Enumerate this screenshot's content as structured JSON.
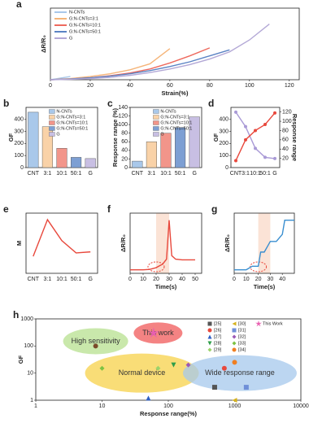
{
  "chart_data": [
    {
      "type": "line",
      "label": "a",
      "xlabel": "Strain(%)",
      "ylabel": "ΔR/R₀",
      "x": [
        0,
        10,
        20,
        30,
        40,
        50,
        60,
        70,
        80,
        90,
        100,
        110,
        120
      ],
      "xlim": [
        0,
        125
      ],
      "xticks": [
        0,
        20,
        40,
        60,
        80,
        100,
        120
      ],
      "ylim": [
        0,
        180
      ],
      "series": [
        {
          "name": "N-CNTs",
          "color": "#a9c8ea",
          "values": [
            0,
            8,
            null,
            null,
            null,
            null,
            null,
            null,
            null,
            null,
            null,
            null,
            null
          ]
        },
        {
          "name": "G:N-CNTs=3:1",
          "color": "#f5b57a",
          "values": [
            0,
            3,
            8,
            15,
            25,
            40,
            78,
            null,
            null,
            null,
            null,
            null,
            null
          ]
        },
        {
          "name": "G:N-CNTs=10:1",
          "color": "#ee6a5e",
          "values": [
            0,
            2,
            5,
            10,
            17,
            27,
            42,
            60,
            80,
            null,
            null,
            null,
            null
          ]
        },
        {
          "name": "G:N-CNTs=50:1",
          "color": "#5b83c4",
          "values": [
            0,
            2,
            5,
            9,
            15,
            23,
            33,
            45,
            60,
            75,
            null,
            null,
            null
          ]
        },
        {
          "name": "G",
          "color": "#b3a8d6",
          "values": [
            0,
            1,
            3,
            6,
            11,
            18,
            27,
            38,
            52,
            70,
            100,
            140,
            null
          ]
        }
      ]
    },
    {
      "type": "bar",
      "label": "b",
      "ylabel": "GF",
      "categories": [
        "CNT",
        "3:1",
        "10:1",
        "50:1",
        "G"
      ],
      "values": [
        460,
        340,
        160,
        85,
        75
      ],
      "colors": [
        "#a9c8ea",
        "#f9d2a8",
        "#f2958a",
        "#7d9fd3",
        "#c8bfe3"
      ],
      "legend": [
        "N-CNTs",
        "G:N-CNTs=3:1",
        "G:N-CNTs=10:1",
        "G:N-CNTs=50:1",
        "G"
      ],
      "ylim": [
        0,
        500
      ],
      "yticks": [
        0,
        100,
        200,
        300,
        400
      ]
    },
    {
      "type": "bar",
      "label": "c",
      "ylabel": "Response range (%)",
      "categories": [
        "CNT",
        "3:1",
        "10:1",
        "50:1",
        "G"
      ],
      "values": [
        15,
        60,
        80,
        93,
        118
      ],
      "colors": [
        "#a9c8ea",
        "#f9d2a8",
        "#f2958a",
        "#7d9fd3",
        "#c8bfe3"
      ],
      "legend": [
        "N-CNTs",
        "G:N-CNTs=3:1",
        "G:N-CNTs=10:1",
        "G:N-CNTs=50:1",
        "G"
      ],
      "ylim": [
        0,
        140
      ],
      "yticks": [
        0,
        20,
        40,
        60,
        80,
        100,
        120,
        140
      ]
    },
    {
      "type": "line",
      "label": "d",
      "ylabel": "GF",
      "y2label": "Response range",
      "markers": true,
      "categories": [
        "CNT",
        "3:1",
        "10:1",
        "50:1",
        "G"
      ],
      "ylim": [
        0,
        500
      ],
      "yticks": [
        0,
        100,
        200,
        300,
        400
      ],
      "y2lim": [
        0,
        130
      ],
      "y2ticks": [
        20,
        40,
        60,
        80,
        100,
        120
      ],
      "series": [
        {
          "color": "#a99ad6",
          "values": [
            460,
            340,
            160,
            85,
            75
          ]
        },
        {
          "color": "#e8483c",
          "values": [
            15,
            60,
            80,
            93,
            118
          ],
          "axis": "y2"
        }
      ]
    },
    {
      "type": "line",
      "label": "e",
      "ylabel": "M",
      "categories": [
        "CNT",
        "3:1",
        "10:1",
        "50:1",
        "G"
      ],
      "values": [
        65,
        205,
        125,
        78,
        82
      ],
      "color": "#e8483c",
      "ylim": [
        0,
        230
      ]
    },
    {
      "type": "line",
      "label": "f",
      "xlabel": "Time(s)",
      "ylabel": "ΔR/R₀",
      "color": "#e8483c",
      "x": [
        0,
        5,
        10,
        15,
        18,
        20,
        22,
        25,
        28,
        30,
        32,
        35,
        40,
        45,
        50
      ],
      "values": [
        0,
        0,
        0,
        0.5,
        2,
        3,
        5,
        8,
        15,
        70,
        20,
        15,
        14,
        14,
        14
      ],
      "xlim": [
        0,
        55
      ],
      "xticks": [
        0,
        10,
        20,
        30,
        40,
        50
      ],
      "ylim": [
        -5,
        80
      ]
    },
    {
      "type": "line",
      "label": "g",
      "xlabel": "Time(s)",
      "ylabel": "ΔR/R₀",
      "color": "#3a8fd0",
      "x": [
        0,
        5,
        10,
        15,
        20,
        22,
        25,
        30,
        35,
        40,
        42,
        45,
        50
      ],
      "values": [
        0,
        0,
        0,
        0.1,
        0.1,
        0.5,
        0.5,
        0.8,
        0.8,
        1.0,
        1.4,
        1.4,
        1.4
      ],
      "xlim": [
        0,
        50
      ],
      "xticks": [
        0,
        10,
        20,
        30,
        40
      ],
      "ylim": [
        -0.1,
        1.6
      ]
    },
    {
      "type": "scatter",
      "label": "h",
      "xlabel": "Response range(%)",
      "ylabel": "GF",
      "xscale": "log",
      "yscale": "log",
      "xlim": [
        1,
        10000
      ],
      "xticks": [
        1,
        10,
        100,
        1000,
        10000
      ],
      "ylim": [
        1,
        1000
      ],
      "yticks": [
        1,
        10,
        100,
        1000
      ],
      "annotations": [
        "High sensitivity",
        "This work",
        "Normal device",
        "Wide response range"
      ],
      "series": [
        {
          "name": "[25]",
          "color": "#555555",
          "marker": "square",
          "x": [
            500
          ],
          "values": [
            3
          ]
        },
        {
          "name": "[26]",
          "color": "#e8483c",
          "marker": "circle",
          "x": [
            700
          ],
          "values": [
            15
          ]
        },
        {
          "name": "[27]",
          "color": "#2f5fc4",
          "marker": "triangle",
          "x": [
            50
          ],
          "values": [
            1.2
          ]
        },
        {
          "name": "[28]",
          "color": "#2e9e4a",
          "marker": "triangle-down",
          "x": [
            120
          ],
          "values": [
            20
          ]
        },
        {
          "name": "[29]",
          "color": "#9bd36a",
          "marker": "diamond",
          "x": [
            70
          ],
          "values": [
            15
          ]
        },
        {
          "name": "[30]",
          "color": "#d6b21e",
          "marker": "triangle-left",
          "x": [
            1000
          ],
          "values": [
            1
          ]
        },
        {
          "name": "[31]",
          "color": "#6f8fd8",
          "marker": "square",
          "x": [
            1500
          ],
          "values": [
            3
          ]
        },
        {
          "name": "[32]",
          "color": "#9b59b6",
          "marker": "diamond",
          "x": [
            200
          ],
          "values": [
            20
          ]
        },
        {
          "name": "[33]",
          "color": "#7cc242",
          "marker": "diamond",
          "x": [
            10
          ],
          "values": [
            15
          ]
        },
        {
          "name": "[34]",
          "color": "#f07f22",
          "marker": "circle",
          "x": [
            1000
          ],
          "values": [
            25
          ]
        },
        {
          "name": "This Work",
          "color": "#e85fb0",
          "marker": "star",
          "x": [
            60
          ],
          "values": [
            300
          ]
        },
        {
          "color": "#7a4a2a",
          "marker": "circle",
          "x": [
            8
          ],
          "values": [
            100
          ]
        }
      ]
    }
  ]
}
